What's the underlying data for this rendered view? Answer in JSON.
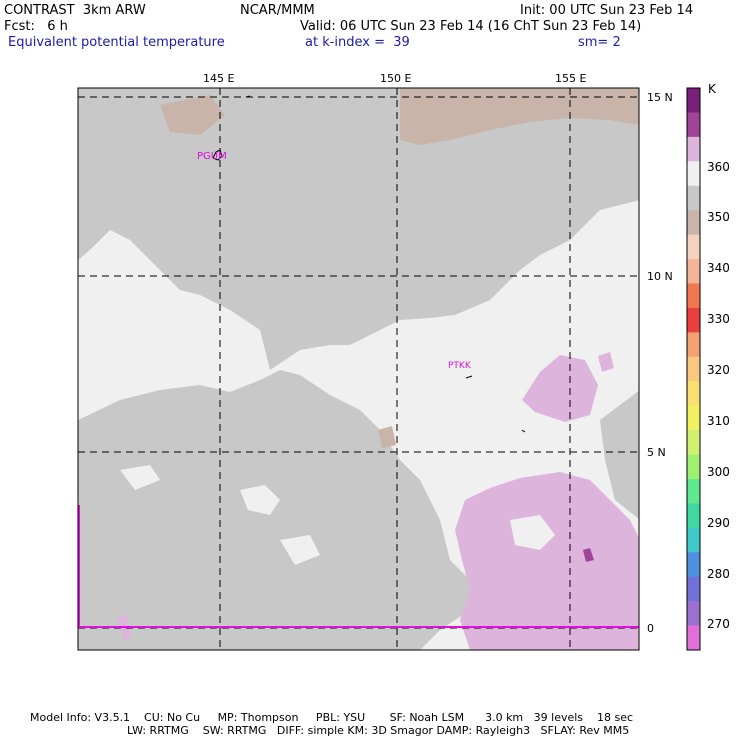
{
  "header": {
    "left_line1": "CONTRAST  3km ARW",
    "left_line2": "Fcst:   6 h",
    "center_line1": "NCAR/MMM",
    "init": "Init: 00 UTC Sun 23 Feb 14",
    "valid": "Valid: 06 UTC Sun 23 Feb 14 (16 ChT Sun 23 Feb 14)",
    "field": "Equivalent potential temperature",
    "level": "at k-index =  39",
    "smoothing": "sm= 2"
  },
  "map": {
    "lon_labels": [
      "145 E",
      "150 E",
      "155 E"
    ],
    "lat_labels": [
      "15 N",
      "10 N",
      "5 N",
      "0"
    ],
    "stations": [
      "PGUM",
      "PTKK"
    ]
  },
  "colorbar": {
    "unit": "K",
    "labels": [
      "360",
      "350",
      "340",
      "330",
      "320",
      "310",
      "300",
      "290",
      "280",
      "270"
    ],
    "colors": [
      "#7a1f7a",
      "#a04498",
      "#dcb4dc",
      "#f0f0f0",
      "#c8c8c8",
      "#c8b4a8",
      "#f5d2c0",
      "#f4b49a",
      "#f07850",
      "#e84040",
      "#f4a070",
      "#f8c880",
      "#f8e070",
      "#f0f060",
      "#d0f070",
      "#a0f070",
      "#60e890",
      "#40d8a0",
      "#40c8c8",
      "#5090e0",
      "#7070d8",
      "#9a70d0",
      "#e070d8"
    ]
  },
  "footer": {
    "line1": "Model Info: V3.5.1    CU: No Cu     MP: Thompson     PBL: YSU       SF: Noah LSM      3.0 km   39 levels    18 sec",
    "line2": "LW: RRTMG    SW: RRTMG   DIFF: simple KM: 3D Smagor DAMP: Rayleigh3   SFLAY: Rev MM5"
  }
}
